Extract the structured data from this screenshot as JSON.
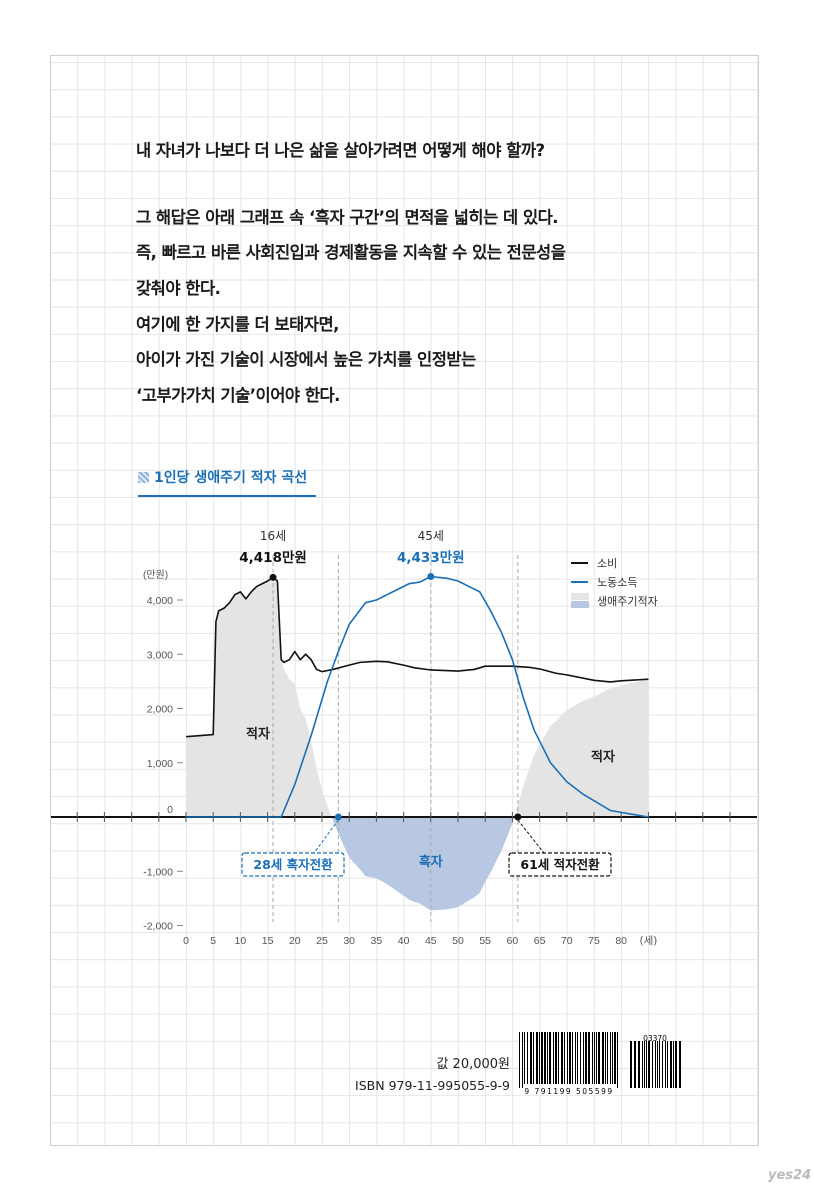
{
  "text_block": {
    "lines": [
      "내 자녀가 나보다 더 나은 삶을 살아가려면 어떻게 해야 할까?",
      "그 해답은 아래 그래프 속 ‘흑자 구간’의 면적을 넓히는 데 있다.",
      "즉, 빠르고 바른 사회진입과 경제활동을 지속할 수 있는 전문성을",
      "갖춰야 한다.",
      "여기에 한 가지를 더 보태자면,",
      "아이가 가진 기술이 시장에서 높은 가치를 인정받는",
      "‘고부가가치 기술’이어야 한다."
    ]
  },
  "chart_data": {
    "type": "line",
    "title": "1인당 생애주기 적자 곡선",
    "xlabel": "(세)",
    "ylabel": "(만원)",
    "xlim": [
      0,
      85
    ],
    "ylim": [
      -2000,
      4500
    ],
    "x_ticks": [
      0,
      5,
      10,
      15,
      20,
      25,
      30,
      35,
      40,
      45,
      50,
      55,
      60,
      65,
      70,
      75,
      80
    ],
    "y_ticks": [
      {
        "v": 4000,
        "label": "4,000"
      },
      {
        "v": 3000,
        "label": "3,000"
      },
      {
        "v": 2000,
        "label": "2,000"
      },
      {
        "v": 1000,
        "label": "1,000"
      },
      {
        "v": 0,
        "label": "0"
      },
      {
        "v": -1000,
        "label": "-1,000"
      },
      {
        "v": -2000,
        "label": "-2,000"
      }
    ],
    "legend": {
      "placement": "top-right",
      "entries": [
        {
          "label": "소비",
          "color": "#111111",
          "kind": "line"
        },
        {
          "label": "노동소득",
          "color": "#1b6fb5",
          "kind": "line"
        },
        {
          "label": "생애주기적자",
          "color": "#e4e4e4",
          "color2": "#b8c8e2",
          "kind": "area"
        }
      ]
    },
    "series": [
      {
        "name": "소비",
        "color": "#111111",
        "x": [
          0,
          5,
          5.5,
          6,
          7,
          8,
          9,
          10,
          11,
          12,
          13,
          14,
          15,
          16,
          16.8,
          17.5,
          18,
          19,
          20,
          21,
          22,
          23,
          24,
          25,
          27,
          30,
          32,
          35,
          37,
          40,
          42,
          45,
          50,
          53,
          55,
          60,
          63,
          65,
          68,
          70,
          75,
          78,
          80,
          85
        ],
        "y": [
          1480,
          1520,
          3600,
          3800,
          3850,
          3950,
          4100,
          4150,
          4020,
          4150,
          4250,
          4300,
          4350,
          4418,
          4350,
          2900,
          2850,
          2900,
          3050,
          2900,
          3000,
          2900,
          2720,
          2680,
          2720,
          2800,
          2850,
          2870,
          2860,
          2800,
          2750,
          2710,
          2690,
          2720,
          2780,
          2780,
          2760,
          2730,
          2650,
          2620,
          2520,
          2490,
          2510,
          2540
        ]
      },
      {
        "name": "노동소득",
        "color": "#1b6fb5",
        "x": [
          0,
          17.5,
          20,
          23,
          26,
          28,
          30,
          33,
          35,
          37,
          39,
          41,
          43,
          45,
          48,
          50,
          52,
          54,
          56,
          58,
          60,
          62,
          64,
          67,
          70,
          73,
          75,
          78,
          85
        ],
        "y": [
          0,
          0,
          600,
          1500,
          2500,
          3050,
          3550,
          3950,
          4000,
          4100,
          4200,
          4300,
          4330,
          4433,
          4400,
          4350,
          4250,
          4150,
          3800,
          3400,
          2900,
          2200,
          1600,
          1000,
          650,
          420,
          300,
          120,
          0
        ]
      }
    ],
    "annotations": [
      {
        "age": 16,
        "age_label": "16세",
        "value_label": "4,418만원",
        "series": "소비"
      },
      {
        "age": 45,
        "age_label": "45세",
        "value_label": "4,433만원",
        "series": "노동소득"
      }
    ],
    "crossings": [
      {
        "age": 28,
        "label": "28세 흑자전환",
        "color": "#1b6fb5"
      },
      {
        "age": 61,
        "label": "61세 적자전환",
        "color": "#111111"
      }
    ],
    "area_labels": {
      "deficit": "적자",
      "surplus": "흑자"
    }
  },
  "footer": {
    "price": "값 20,000원",
    "isbn": "ISBN 979-11-995055-9-9",
    "barcode_digits": "9 791199 505599",
    "addon_digits": "03370"
  }
}
